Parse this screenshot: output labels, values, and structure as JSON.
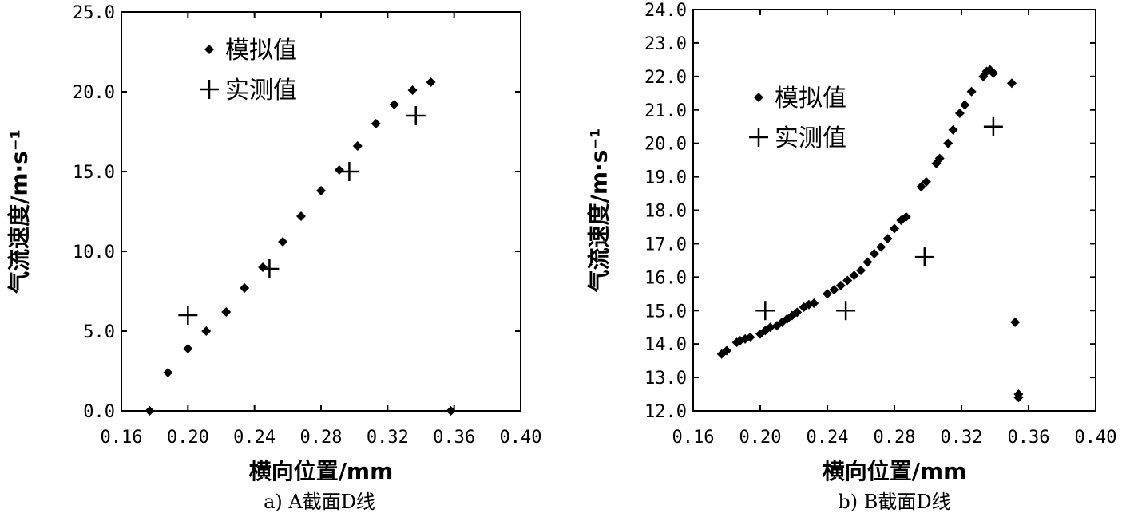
{
  "chart_data": [
    {
      "type": "scatter",
      "caption": "a) A截面D线",
      "xlabel": "横向位置/mm",
      "ylabel": "气流速度/m·s⁻¹",
      "xlim": [
        0.16,
        0.4
      ],
      "ylim": [
        0.0,
        25.0
      ],
      "xticks": [
        "0.16",
        "0.20",
        "0.24",
        "0.28",
        "0.32",
        "0.36",
        "0.40"
      ],
      "yticks": [
        "0.0",
        "5.0",
        "10.0",
        "15.0",
        "20.0",
        "25.0"
      ],
      "legend_position": "top-left",
      "series": [
        {
          "name": "模拟值",
          "marker": "diamond",
          "points": [
            [
              0.177,
              0.0
            ],
            [
              0.188,
              2.4
            ],
            [
              0.2,
              3.9
            ],
            [
              0.211,
              5.0
            ],
            [
              0.223,
              6.2
            ],
            [
              0.234,
              7.7
            ],
            [
              0.245,
              9.0
            ],
            [
              0.257,
              10.6
            ],
            [
              0.268,
              12.2
            ],
            [
              0.28,
              13.8
            ],
            [
              0.291,
              15.1
            ],
            [
              0.302,
              16.6
            ],
            [
              0.313,
              18.0
            ],
            [
              0.324,
              19.2
            ],
            [
              0.335,
              20.1
            ],
            [
              0.346,
              20.6
            ],
            [
              0.358,
              0.0
            ]
          ]
        },
        {
          "name": "实测值",
          "marker": "plus",
          "points": [
            [
              0.2,
              6.0
            ],
            [
              0.249,
              8.9
            ],
            [
              0.297,
              15.0
            ],
            [
              0.337,
              18.5
            ]
          ]
        }
      ]
    },
    {
      "type": "scatter",
      "caption": "b) B截面D线",
      "xlabel": "横向位置/mm",
      "ylabel": "气流速度/m·s⁻¹",
      "xlim": [
        0.16,
        0.4
      ],
      "ylim": [
        12.0,
        24.0
      ],
      "xticks": [
        "0.16",
        "0.20",
        "0.24",
        "0.28",
        "0.32",
        "0.36",
        "0.40"
      ],
      "yticks": [
        "12.0",
        "13.0",
        "14.0",
        "15.0",
        "16.0",
        "17.0",
        "18.0",
        "19.0",
        "20.0",
        "21.0",
        "22.0",
        "23.0",
        "24.0"
      ],
      "legend_position": "top-left",
      "series": [
        {
          "name": "模拟值",
          "marker": "diamond",
          "points": [
            [
              0.177,
              13.7
            ],
            [
              0.18,
              13.8
            ],
            [
              0.186,
              14.05
            ],
            [
              0.188,
              14.1
            ],
            [
              0.191,
              14.15
            ],
            [
              0.194,
              14.2
            ],
            [
              0.2,
              14.3
            ],
            [
              0.203,
              14.4
            ],
            [
              0.206,
              14.5
            ],
            [
              0.21,
              14.55
            ],
            [
              0.213,
              14.65
            ],
            [
              0.216,
              14.75
            ],
            [
              0.219,
              14.85
            ],
            [
              0.222,
              14.95
            ],
            [
              0.226,
              15.1
            ],
            [
              0.229,
              15.18
            ],
            [
              0.232,
              15.22
            ],
            [
              0.24,
              15.5
            ],
            [
              0.244,
              15.62
            ],
            [
              0.248,
              15.75
            ],
            [
              0.252,
              15.9
            ],
            [
              0.256,
              16.05
            ],
            [
              0.26,
              16.2
            ],
            [
              0.264,
              16.45
            ],
            [
              0.268,
              16.7
            ],
            [
              0.272,
              16.9
            ],
            [
              0.276,
              17.15
            ],
            [
              0.28,
              17.45
            ],
            [
              0.284,
              17.7
            ],
            [
              0.287,
              17.8
            ],
            [
              0.296,
              18.7
            ],
            [
              0.299,
              18.85
            ],
            [
              0.305,
              19.4
            ],
            [
              0.307,
              19.55
            ],
            [
              0.312,
              20.0
            ],
            [
              0.315,
              20.4
            ],
            [
              0.319,
              20.9
            ],
            [
              0.322,
              21.15
            ],
            [
              0.326,
              21.55
            ],
            [
              0.333,
              22.0
            ],
            [
              0.335,
              22.15
            ],
            [
              0.337,
              22.2
            ],
            [
              0.339,
              22.1
            ],
            [
              0.35,
              21.8
            ],
            [
              0.352,
              14.65
            ],
            [
              0.354,
              12.5
            ],
            [
              0.354,
              12.4
            ]
          ]
        },
        {
          "name": "实测值",
          "marker": "plus",
          "points": [
            [
              0.203,
              15.0
            ],
            [
              0.251,
              15.0
            ],
            [
              0.298,
              16.6
            ],
            [
              0.339,
              20.5
            ]
          ]
        }
      ]
    }
  ]
}
